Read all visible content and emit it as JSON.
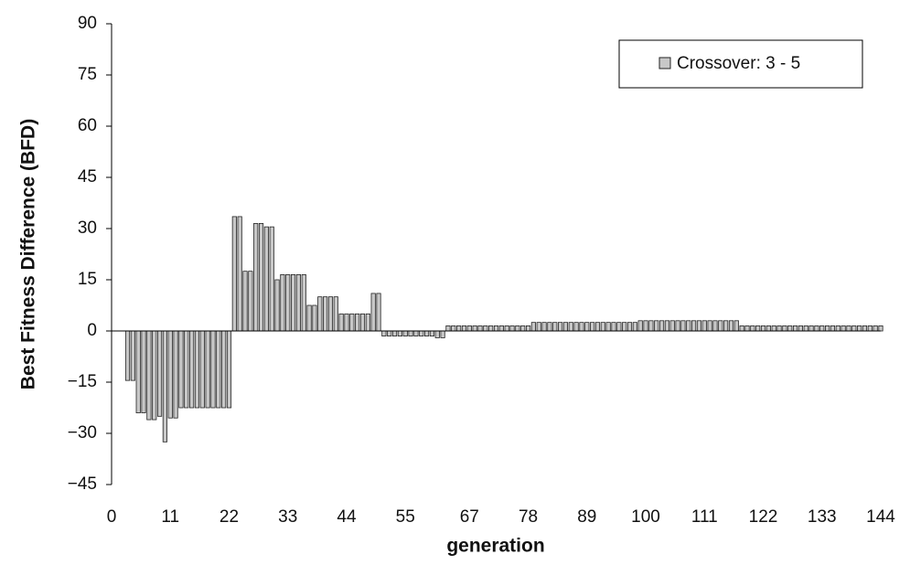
{
  "chart_data": {
    "type": "bar",
    "y_label": "Best Fitness Difference (BFD)",
    "x_label": "generation",
    "x": [
      3,
      4,
      5,
      6,
      7,
      8,
      9,
      10,
      11,
      12,
      13,
      14,
      15,
      16,
      17,
      18,
      19,
      20,
      21,
      22,
      23,
      24,
      25,
      26,
      27,
      28,
      29,
      30,
      31,
      32,
      33,
      34,
      35,
      36,
      37,
      38,
      39,
      40,
      41,
      42,
      43,
      44,
      45,
      46,
      47,
      48,
      49,
      50,
      51,
      52,
      53,
      54,
      55,
      56,
      57,
      58,
      59,
      60,
      61,
      62,
      63,
      64,
      65,
      66,
      67,
      68,
      69,
      70,
      71,
      72,
      73,
      74,
      75,
      76,
      77,
      78,
      79,
      80,
      81,
      82,
      83,
      84,
      85,
      86,
      87,
      88,
      89,
      90,
      91,
      92,
      93,
      94,
      95,
      96,
      97,
      98,
      99,
      100,
      101,
      102,
      103,
      104,
      105,
      106,
      107,
      108,
      109,
      110,
      111,
      112,
      113,
      114,
      115,
      116,
      117,
      118,
      119,
      120,
      121,
      122,
      123,
      124,
      125,
      126,
      127,
      128,
      129,
      130,
      131,
      132,
      133,
      134,
      135,
      136,
      137,
      138,
      139,
      140,
      141,
      142,
      143,
      144
    ],
    "series": [
      {
        "name": "Crossover: 3 - 5",
        "color": "#c8c8c8",
        "values": [
          -14.5,
          -14.5,
          -24,
          -24,
          -26,
          -26,
          -25,
          -32.5,
          -25.5,
          -25.5,
          -22.5,
          -22.5,
          -22.5,
          -22.5,
          -22.5,
          -22.5,
          -22.5,
          -22.5,
          -22.5,
          -22.5,
          33.5,
          33.5,
          17.5,
          17.5,
          31.5,
          31.5,
          30.5,
          30.5,
          15,
          16.5,
          16.5,
          16.5,
          16.5,
          16.5,
          7.5,
          7.5,
          10,
          10,
          10,
          10,
          5,
          5,
          5,
          5,
          5,
          5,
          11,
          11,
          -1.5,
          -1.5,
          -1.5,
          -1.5,
          -1.5,
          -1.5,
          -1.5,
          -1.5,
          -1.5,
          -1.5,
          -2,
          -2,
          1.5,
          1.5,
          1.5,
          1.5,
          1.5,
          1.5,
          1.5,
          1.5,
          1.5,
          1.5,
          1.5,
          1.5,
          1.5,
          1.5,
          1.5,
          1.5,
          2.5,
          2.5,
          2.5,
          2.5,
          2.5,
          2.5,
          2.5,
          2.5,
          2.5,
          2.5,
          2.5,
          2.5,
          2.5,
          2.5,
          2.5,
          2.5,
          2.5,
          2.5,
          2.5,
          2.5,
          3,
          3,
          3,
          3,
          3,
          3,
          3,
          3,
          3,
          3,
          3,
          3,
          3,
          3,
          3,
          3,
          3,
          3,
          3,
          1.5,
          1.5,
          1.5,
          1.5,
          1.5,
          1.5,
          1.5,
          1.5,
          1.5,
          1.5,
          1.5,
          1.5,
          1.5,
          1.5,
          1.5,
          1.5,
          1.5,
          1.5,
          1.5,
          1.5,
          1.5,
          1.5,
          1.5,
          1.5,
          1.5,
          1.5,
          1.5
        ]
      }
    ],
    "xlim": [
      0,
      144
    ],
    "xticks": [
      0,
      11,
      22,
      33,
      44,
      55,
      67,
      78,
      89,
      100,
      111,
      122,
      133,
      144
    ],
    "ylim": [
      -45,
      90
    ],
    "yticks": [
      90,
      75,
      60,
      45,
      30,
      15,
      0,
      {
        "value": -15,
        "label": "−15"
      },
      {
        "value": -30,
        "label": "−30"
      },
      {
        "value": -45,
        "label": "−45"
      }
    ],
    "legend": "top-right"
  }
}
